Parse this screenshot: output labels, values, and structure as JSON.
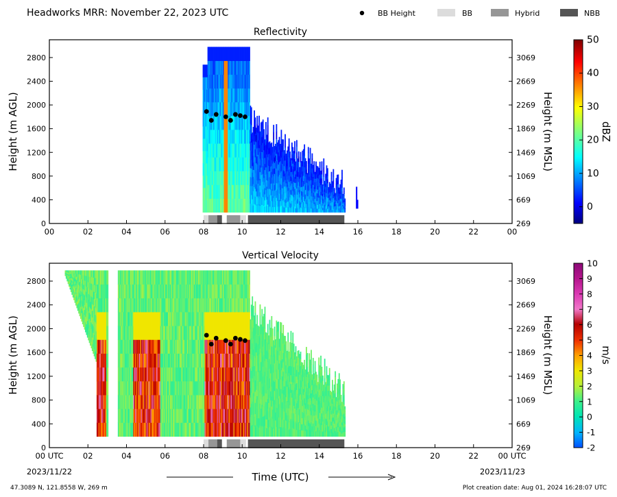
{
  "header": {
    "title": "Headworks MRR:  November 22, 2023 UTC",
    "legend": [
      {
        "label": "BB Height",
        "kind": "dot",
        "color": "#000000"
      },
      {
        "label": "BB",
        "kind": "box",
        "color": "#dcdcdc"
      },
      {
        "label": "Hybrid",
        "kind": "box",
        "color": "#969696"
      },
      {
        "label": "NBB",
        "kind": "box",
        "color": "#555555"
      }
    ]
  },
  "footer": {
    "location": "47.3089 N, 121.8558 W, 269 m",
    "creation": "Plot creation date: Aug 01, 2024 16:28:07 UTC",
    "xlabel": "Time (UTC)",
    "start_date": "2023/11/22",
    "end_date": "2023/11/23"
  },
  "chart_data": [
    {
      "type": "heatmap",
      "title": "Reflectivity",
      "ylabel": "Height (m AGL)",
      "ylabel_right": "Height (m MSL)",
      "colorbar_label": "dBZ",
      "colorbar_ticks": [
        "0",
        "10",
        "20",
        "30",
        "40",
        "50"
      ],
      "colorbar_range": [
        -5,
        50
      ],
      "xlim": [
        0,
        24
      ],
      "ylim": [
        0,
        3100
      ],
      "x_ticks": [
        "00",
        "02",
        "04",
        "06",
        "08",
        "10",
        "12",
        "14",
        "16",
        "18",
        "20",
        "22",
        "00"
      ],
      "y_ticks": [
        "0",
        "400",
        "800",
        "1200",
        "1600",
        "2000",
        "2400",
        "2800"
      ],
      "y_ticks_right": [
        "269",
        "669",
        "1069",
        "1469",
        "1869",
        "2269",
        "2669",
        "3069"
      ],
      "bb_heights": [
        {
          "t": 8.15,
          "h": 1890
        },
        {
          "t": 8.4,
          "h": 1740
        },
        {
          "t": 8.65,
          "h": 1840
        },
        {
          "t": 9.15,
          "h": 1800
        },
        {
          "t": 9.4,
          "h": 1740
        },
        {
          "t": 9.65,
          "h": 1840
        },
        {
          "t": 9.9,
          "h": 1820
        },
        {
          "t": 10.15,
          "h": 1800
        }
      ],
      "bb_type_strip": [
        {
          "start": 8.0,
          "end": 8.25,
          "kind": "BB"
        },
        {
          "start": 8.25,
          "end": 8.7,
          "kind": "Hybrid"
        },
        {
          "start": 8.7,
          "end": 8.95,
          "kind": "NBB"
        },
        {
          "start": 9.2,
          "end": 9.9,
          "kind": "Hybrid"
        },
        {
          "start": 9.9,
          "end": 10.2,
          "kind": "BB"
        },
        {
          "start": 10.3,
          "end": 15.3,
          "kind": "NBB"
        }
      ]
    },
    {
      "type": "heatmap",
      "title": "Vertical Velocity",
      "ylabel": "Height (m AGL)",
      "ylabel_right": "Height (m MSL)",
      "colorbar_label": "m/s",
      "colorbar_ticks": [
        "-2",
        "-1",
        "0",
        "1",
        "2",
        "3",
        "4",
        "5",
        "6",
        "7",
        "8",
        "9",
        "10"
      ],
      "colorbar_range": [
        -2,
        10
      ],
      "xlim": [
        0,
        24
      ],
      "ylim": [
        0,
        3100
      ],
      "x_ticks": [
        "00 UTC",
        "02",
        "04",
        "06",
        "08",
        "10",
        "12",
        "14",
        "16",
        "18",
        "20",
        "22",
        "00 UTC"
      ],
      "y_ticks": [
        "0",
        "400",
        "800",
        "1200",
        "1600",
        "2000",
        "2400",
        "2800"
      ],
      "y_ticks_right": [
        "269",
        "669",
        "1069",
        "1469",
        "1869",
        "2269",
        "2669",
        "3069"
      ],
      "bb_heights": [
        {
          "t": 8.15,
          "h": 1890
        },
        {
          "t": 8.4,
          "h": 1740
        },
        {
          "t": 8.65,
          "h": 1840
        },
        {
          "t": 9.15,
          "h": 1800
        },
        {
          "t": 9.4,
          "h": 1740
        },
        {
          "t": 9.65,
          "h": 1840
        },
        {
          "t": 9.9,
          "h": 1820
        },
        {
          "t": 10.15,
          "h": 1800
        }
      ],
      "bb_type_strip": [
        {
          "start": 8.0,
          "end": 8.25,
          "kind": "BB"
        },
        {
          "start": 8.25,
          "end": 8.7,
          "kind": "Hybrid"
        },
        {
          "start": 8.7,
          "end": 8.95,
          "kind": "NBB"
        },
        {
          "start": 9.2,
          "end": 9.9,
          "kind": "Hybrid"
        },
        {
          "start": 9.9,
          "end": 10.2,
          "kind": "BB"
        },
        {
          "start": 10.3,
          "end": 15.3,
          "kind": "NBB"
        }
      ]
    }
  ]
}
